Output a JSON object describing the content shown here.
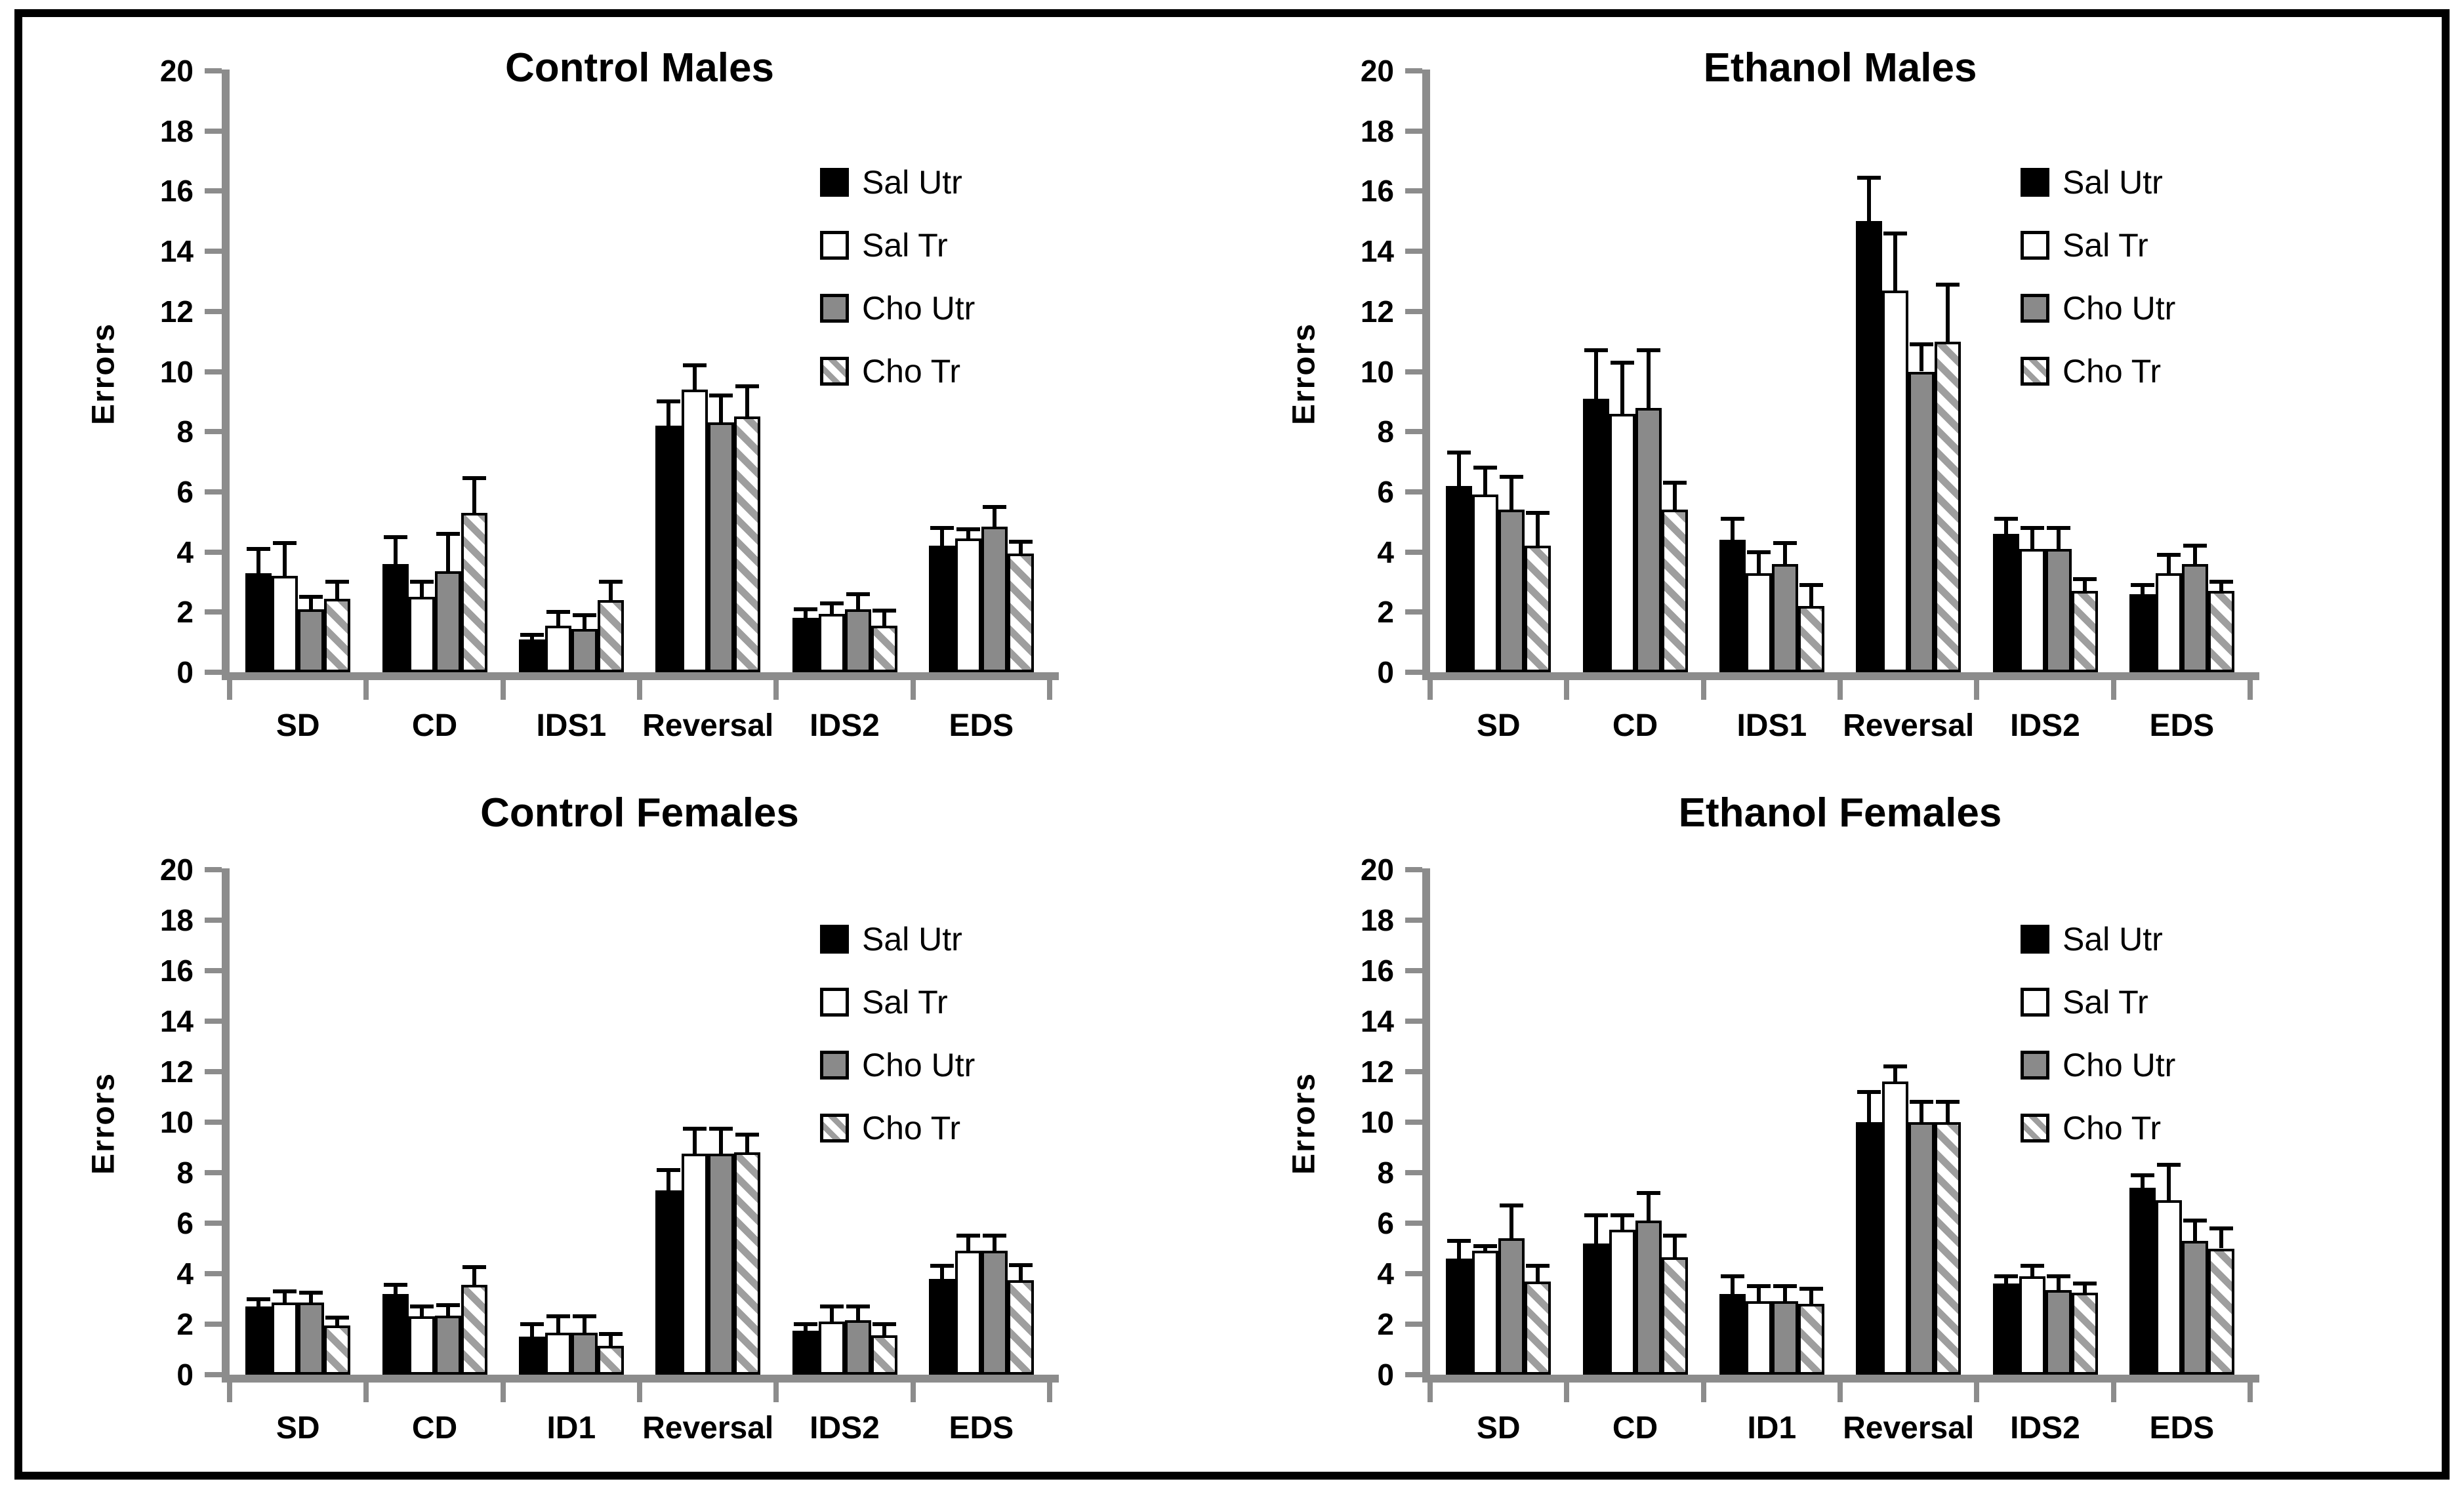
{
  "page": {
    "background": "#ffffff",
    "frame_color": "#000000",
    "axis_color": "#8c8c8c",
    "text_color": "#000000",
    "error_bar_color": "#000000"
  },
  "series_styles": [
    {
      "key": "sal-utr",
      "label": "Sal Utr",
      "fill": "#000000",
      "border": "#000000",
      "pattern": "solid"
    },
    {
      "key": "sal-tr",
      "label": "Sal Tr",
      "fill": "#ffffff",
      "border": "#000000",
      "pattern": "solid"
    },
    {
      "key": "cho-utr",
      "label": "Cho Utr",
      "fill": "#8a8a8a",
      "border": "#000000",
      "pattern": "solid"
    },
    {
      "key": "cho-tr",
      "label": "Cho Tr",
      "fill": "#ffffff",
      "border": "#000000",
      "pattern": "diagonal-hatch",
      "hatch_color": "#9e9e9e"
    }
  ],
  "chart_data": [
    {
      "type": "bar",
      "title": "Control Males",
      "ylabel": "Errors",
      "xlabel": "",
      "ylim": [
        0,
        20
      ],
      "ytick_step": 2,
      "grid": false,
      "legend_position": "inside-upper-right",
      "categories": [
        "SD",
        "CD",
        "IDS1",
        "Reversal",
        "IDS2",
        "EDS"
      ],
      "legend": [
        "Sal Utr",
        "Sal Tr",
        "Cho Utr",
        "Cho Tr"
      ],
      "series": [
        {
          "name": "Sal Utr",
          "values": [
            3.3,
            3.6,
            1.1,
            8.2,
            1.8,
            4.2
          ],
          "errors": [
            0.8,
            0.9,
            0.15,
            0.8,
            0.3,
            0.6
          ]
        },
        {
          "name": "Sal Tr",
          "values": [
            3.2,
            2.5,
            1.55,
            9.4,
            1.95,
            4.45
          ],
          "errors": [
            1.1,
            0.5,
            0.45,
            0.8,
            0.35,
            0.3
          ]
        },
        {
          "name": "Cho Utr",
          "values": [
            2.1,
            3.35,
            1.45,
            8.3,
            2.1,
            4.85
          ],
          "errors": [
            0.4,
            1.25,
            0.45,
            0.9,
            0.5,
            0.65
          ]
        },
        {
          "name": "Cho Tr",
          "values": [
            2.45,
            5.3,
            2.4,
            8.5,
            1.55,
            3.95
          ],
          "errors": [
            0.55,
            1.15,
            0.6,
            1.0,
            0.5,
            0.4
          ]
        }
      ]
    },
    {
      "type": "bar",
      "title": "Ethanol Males",
      "ylabel": "Errors",
      "xlabel": "",
      "ylim": [
        0,
        20
      ],
      "ytick_step": 2,
      "grid": false,
      "legend_position": "inside-upper-right",
      "categories": [
        "SD",
        "CD",
        "IDS1",
        "Reversal",
        "IDS2",
        "EDS"
      ],
      "legend": [
        "Sal Utr",
        "Sal Tr",
        "Cho Utr",
        "Cho Tr"
      ],
      "series": [
        {
          "name": "Sal Utr",
          "values": [
            6.2,
            9.1,
            4.4,
            15.0,
            4.6,
            2.6
          ],
          "errors": [
            1.1,
            1.6,
            0.7,
            1.45,
            0.5,
            0.3
          ]
        },
        {
          "name": "Sal Tr",
          "values": [
            5.9,
            8.6,
            3.3,
            12.7,
            4.1,
            3.3
          ],
          "errors": [
            0.9,
            1.7,
            0.7,
            1.9,
            0.7,
            0.6
          ]
        },
        {
          "name": "Cho Utr",
          "values": [
            5.4,
            8.8,
            3.6,
            10.0,
            4.1,
            3.6
          ],
          "errors": [
            1.1,
            1.9,
            0.7,
            0.9,
            0.7,
            0.6
          ]
        },
        {
          "name": "Cho Tr",
          "values": [
            4.2,
            5.4,
            2.2,
            11.0,
            2.7,
            2.7
          ],
          "errors": [
            1.1,
            0.9,
            0.7,
            1.9,
            0.4,
            0.3
          ]
        }
      ]
    },
    {
      "type": "bar",
      "title": "Control Females",
      "ylabel": "Errors",
      "xlabel": "",
      "ylim": [
        0,
        20
      ],
      "ytick_step": 2,
      "grid": false,
      "legend_position": "inside-upper-right",
      "categories": [
        "SD",
        "CD",
        "ID1",
        "Reversal",
        "IDS2",
        "EDS"
      ],
      "legend": [
        "Sal Utr",
        "Sal Tr",
        "Cho Utr",
        "Cho Tr"
      ],
      "series": [
        {
          "name": "Sal Utr",
          "values": [
            2.7,
            3.2,
            1.5,
            7.3,
            1.75,
            3.8
          ],
          "errors": [
            0.3,
            0.35,
            0.5,
            0.8,
            0.25,
            0.5
          ]
        },
        {
          "name": "Sal Tr",
          "values": [
            2.85,
            2.3,
            1.65,
            8.75,
            2.1,
            4.9
          ],
          "errors": [
            0.45,
            0.4,
            0.65,
            1.0,
            0.6,
            0.6
          ]
        },
        {
          "name": "Cho Utr",
          "values": [
            2.85,
            2.35,
            1.65,
            8.75,
            2.15,
            4.9
          ],
          "errors": [
            0.4,
            0.4,
            0.65,
            1.0,
            0.55,
            0.6
          ]
        },
        {
          "name": "Cho Tr",
          "values": [
            1.95,
            3.55,
            1.15,
            8.8,
            1.55,
            3.75
          ],
          "errors": [
            0.3,
            0.7,
            0.45,
            0.7,
            0.45,
            0.6
          ]
        }
      ]
    },
    {
      "type": "bar",
      "title": "Ethanol Females",
      "ylabel": "Errors",
      "xlabel": "",
      "ylim": [
        0,
        20
      ],
      "ytick_step": 2,
      "grid": false,
      "legend_position": "inside-upper-right",
      "categories": [
        "SD",
        "CD",
        "ID1",
        "Reversal",
        "IDS2",
        "EDS"
      ],
      "legend": [
        "Sal Utr",
        "Sal Tr",
        "Cho Utr",
        "Cho Tr"
      ],
      "series": [
        {
          "name": "Sal Utr",
          "values": [
            4.6,
            5.2,
            3.2,
            10.0,
            3.6,
            7.4
          ],
          "errors": [
            0.7,
            1.1,
            0.7,
            1.2,
            0.3,
            0.5
          ]
        },
        {
          "name": "Sal Tr",
          "values": [
            4.9,
            5.75,
            2.9,
            11.6,
            3.9,
            6.9
          ],
          "errors": [
            0.2,
            0.55,
            0.6,
            0.6,
            0.4,
            1.4
          ]
        },
        {
          "name": "Cho Utr",
          "values": [
            5.4,
            6.1,
            2.9,
            10.0,
            3.35,
            5.3
          ],
          "errors": [
            1.3,
            1.1,
            0.6,
            0.8,
            0.55,
            0.8
          ]
        },
        {
          "name": "Cho Tr",
          "values": [
            3.7,
            4.65,
            2.8,
            10.0,
            3.25,
            5.0
          ],
          "errors": [
            0.6,
            0.85,
            0.6,
            0.8,
            0.35,
            0.8
          ]
        }
      ]
    }
  ]
}
